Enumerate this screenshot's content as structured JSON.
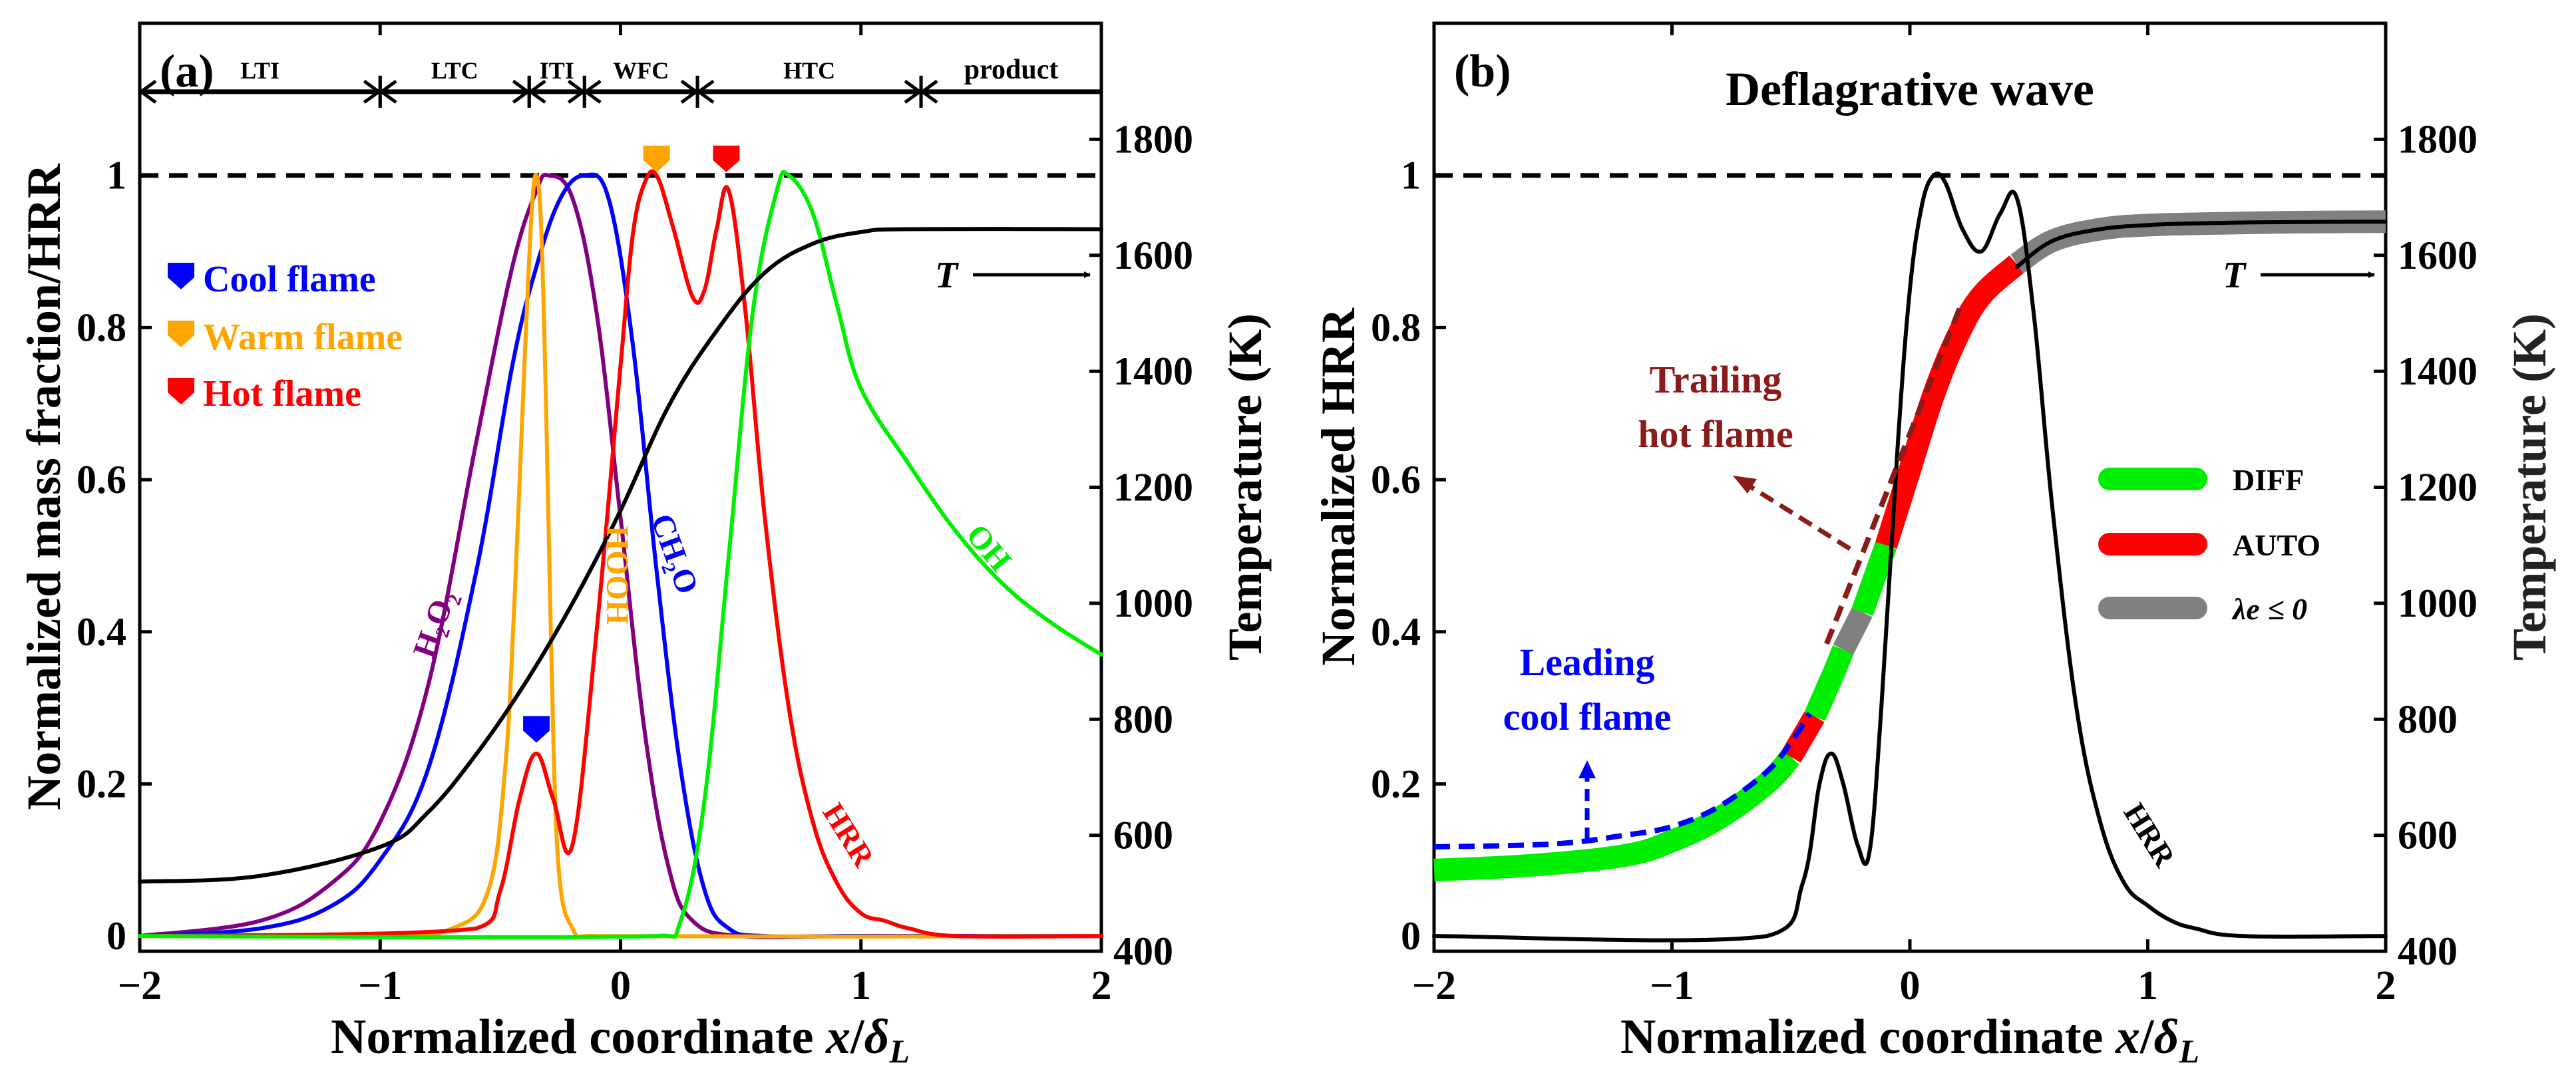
{
  "colors": {
    "black": "#000000",
    "purple": "#800080",
    "blue": "#0000ff",
    "orange": "#ffa500",
    "red": "#ff0000",
    "green": "#00ee00",
    "darkred": "#8b1a1a",
    "gray": "#808080"
  },
  "chart_data": [
    {
      "type": "line",
      "panel": "(a)",
      "xlabel": "Normalized coordinate x/δL",
      "ylabel": "Normalized mass fraction/HRR",
      "y2label": "Temperature (K)",
      "xlim": [
        -2,
        2
      ],
      "ylim": [
        -0.02,
        1.2
      ],
      "y2lim": [
        400,
        2000
      ],
      "xticks": [
        "-2",
        "-1",
        "0",
        "1",
        "2"
      ],
      "yticks": [
        "0",
        "0.2",
        "0.4",
        "0.6",
        "0.8",
        "1"
      ],
      "y2ticks": [
        "400",
        "600",
        "800",
        "1000",
        "1200",
        "1400",
        "1600",
        "1800"
      ],
      "dashed_reference": 1.0,
      "regions": [
        {
          "label": "LTI",
          "x0": -2.0,
          "x1": -1.0
        },
        {
          "label": "LTC",
          "x0": -1.0,
          "x1": -0.38
        },
        {
          "label": "ITI",
          "x0": -0.38,
          "x1": -0.15
        },
        {
          "label": "WFC",
          "x0": -0.15,
          "x1": 0.32
        },
        {
          "label": "HTC",
          "x0": 0.32,
          "x1": 1.25
        },
        {
          "label": "product",
          "x0": 1.25,
          "x1": 2.0
        }
      ],
      "legend": [
        {
          "label": "Cool flame",
          "color": "#0000ff"
        },
        {
          "label": "Warm flame",
          "color": "#ffa500"
        },
        {
          "label": "Hot flame",
          "color": "#ff0000"
        }
      ],
      "markers": [
        {
          "x": -0.35,
          "y": 0.27,
          "color": "#0000ff"
        },
        {
          "x": 0.15,
          "y": 1.02,
          "color": "#ffa500"
        },
        {
          "x": 0.44,
          "y": 1.02,
          "color": "#ff0000"
        }
      ],
      "series": [
        {
          "name": "H2O2",
          "label": "H₂O₂",
          "color": "#800080",
          "axis": "left",
          "x": [
            -2,
            -1.5,
            -1.2,
            -1.0,
            -0.8,
            -0.6,
            -0.45,
            -0.35,
            -0.3,
            -0.2,
            -0.1,
            0,
            0.1,
            0.2,
            0.3,
            0.5,
            1,
            2
          ],
          "y": [
            0.0,
            0.02,
            0.07,
            0.15,
            0.33,
            0.65,
            0.88,
            0.98,
            1.0,
            0.97,
            0.82,
            0.55,
            0.27,
            0.09,
            0.02,
            0.0,
            0.0,
            0.0
          ]
        },
        {
          "name": "CH2O",
          "label": "CH₂O",
          "color": "#0000ff",
          "axis": "left",
          "x": [
            -2,
            -1.5,
            -1.2,
            -1.0,
            -0.8,
            -0.6,
            -0.45,
            -0.35,
            -0.25,
            -0.15,
            -0.05,
            0.05,
            0.15,
            0.25,
            0.35,
            0.45,
            0.6,
            1,
            2
          ],
          "y": [
            0.0,
            0.01,
            0.04,
            0.1,
            0.22,
            0.48,
            0.75,
            0.88,
            0.97,
            1.0,
            0.97,
            0.78,
            0.48,
            0.22,
            0.06,
            0.01,
            0.0,
            0.0,
            0.0
          ]
        },
        {
          "name": "HOOH",
          "label": "HOOH",
          "color": "#ffa500",
          "axis": "left",
          "x": [
            -2,
            -1,
            -0.7,
            -0.55,
            -0.48,
            -0.44,
            -0.4,
            -0.37,
            -0.35,
            -0.33,
            -0.31,
            -0.29,
            -0.26,
            -0.2,
            -0.1,
            2
          ],
          "y": [
            0.0,
            0.0,
            0.01,
            0.06,
            0.22,
            0.45,
            0.75,
            0.95,
            1.0,
            0.93,
            0.7,
            0.4,
            0.1,
            0.01,
            0.0,
            0.0
          ]
        },
        {
          "name": "HRR",
          "label": "HRR",
          "color": "#ff0000",
          "axis": "left",
          "x": [
            -2,
            -0.6,
            -0.5,
            -0.42,
            -0.35,
            -0.28,
            -0.2,
            -0.1,
            0.0,
            0.05,
            0.1,
            0.15,
            0.22,
            0.3,
            0.35,
            0.4,
            0.45,
            0.52,
            0.6,
            0.7,
            0.8,
            0.9,
            1.0,
            1.1,
            1.2,
            1.4,
            2.0
          ],
          "y": [
            0.0,
            0.01,
            0.06,
            0.18,
            0.24,
            0.18,
            0.12,
            0.4,
            0.75,
            0.92,
            0.99,
            1.0,
            0.93,
            0.84,
            0.85,
            0.93,
            0.98,
            0.82,
            0.55,
            0.3,
            0.15,
            0.07,
            0.03,
            0.02,
            0.01,
            0.0,
            0.0
          ]
        },
        {
          "name": "OH",
          "label": "OH",
          "color": "#00ee00",
          "axis": "left",
          "x": [
            -2,
            0.15,
            0.25,
            0.35,
            0.45,
            0.55,
            0.65,
            0.7,
            0.8,
            0.9,
            1.0,
            1.2,
            1.4,
            1.6,
            1.8,
            2.0
          ],
          "y": [
            0.0,
            0.0,
            0.02,
            0.18,
            0.5,
            0.82,
            0.98,
            1.0,
            0.95,
            0.83,
            0.72,
            0.62,
            0.53,
            0.46,
            0.41,
            0.37
          ]
        },
        {
          "name": "T",
          "label": "T",
          "color": "#000000",
          "axis": "right",
          "x": [
            -2,
            -1.5,
            -1.0,
            -0.8,
            -0.6,
            -0.4,
            -0.2,
            0,
            0.2,
            0.4,
            0.6,
            0.8,
            1.0,
            1.2,
            2.0
          ],
          "y": [
            520,
            530,
            580,
            640,
            740,
            860,
            1000,
            1160,
            1340,
            1470,
            1570,
            1620,
            1640,
            1645,
            1645
          ]
        }
      ],
      "annotations": [
        {
          "text": "T",
          "x": 1.42,
          "y2": 1600
        },
        {
          "text": "H₂O₂",
          "x": -0.85,
          "y": 0.33
        },
        {
          "text": "HOOH",
          "x": -0.2,
          "y": 0.61
        },
        {
          "text": "CH₂O",
          "x": 0.28,
          "y": 0.5
        },
        {
          "text": "OH",
          "x": 1.55,
          "y": 0.5
        },
        {
          "text": "HRR",
          "x": 1.1,
          "y": 0.13
        }
      ]
    },
    {
      "type": "line",
      "panel": "(b)",
      "title": "Deflagrative wave",
      "xlabel": "Normalized coordinate x/δL",
      "ylabel": "Normalized HRR",
      "y2label": "Temperature (K)",
      "xlim": [
        -2,
        2
      ],
      "ylim": [
        -0.02,
        1.2
      ],
      "y2lim": [
        400,
        2000
      ],
      "xticks": [
        "-2",
        "-1",
        "0",
        "1",
        "2"
      ],
      "yticks": [
        "0",
        "0.2",
        "0.4",
        "0.6",
        "0.8",
        "1"
      ],
      "y2ticks": [
        "400",
        "600",
        "800",
        "1000",
        "1200",
        "1400",
        "1600",
        "1800"
      ],
      "dashed_reference": 1.0,
      "legend": [
        {
          "label": "DIFF",
          "color": "#00ee00"
        },
        {
          "label": "AUTO",
          "color": "#ff0000"
        },
        {
          "label": "λe ≤ 0",
          "color": "#808080"
        }
      ],
      "series": [
        {
          "name": "HRR",
          "label": "HRR",
          "color": "#000000",
          "axis": "left",
          "x": [
            -2,
            -0.6,
            -0.45,
            -0.38,
            -0.33,
            -0.28,
            -0.22,
            -0.17,
            -0.12,
            -0.05,
            0.0,
            0.05,
            0.1,
            0.15,
            0.22,
            0.3,
            0.38,
            0.45,
            0.52,
            0.6,
            0.7,
            0.8,
            0.9,
            1.0,
            1.1,
            1.2,
            1.4,
            2.0
          ],
          "y": [
            0.0,
            0.0,
            0.07,
            0.2,
            0.24,
            0.2,
            0.12,
            0.11,
            0.3,
            0.65,
            0.85,
            0.96,
            1.0,
            0.99,
            0.93,
            0.9,
            0.95,
            0.97,
            0.82,
            0.56,
            0.3,
            0.15,
            0.07,
            0.04,
            0.02,
            0.01,
            0.0,
            0.0
          ]
        },
        {
          "name": "T_thin",
          "label": "",
          "color": "#000000",
          "axis": "right",
          "x": [
            0.45,
            0.6,
            0.8,
            1.0,
            1.2,
            1.5,
            2.0
          ],
          "y": [
            1580,
            1625,
            1645,
            1652,
            1655,
            1657,
            1658
          ]
        },
        {
          "name": "Trailing hot flame guide",
          "label": "Trailing hot flame",
          "color": "#8b1a1a",
          "axis": "right",
          "style": "dashed",
          "x": [
            -0.35,
            0.22
          ],
          "y": [
            930,
            1520
          ]
        },
        {
          "name": "Leading cool flame guide",
          "label": "Leading cool flame",
          "color": "#0000ff",
          "axis": "right",
          "style": "dashed",
          "x": [
            -2,
            -1.5,
            -1.2,
            -1.0,
            -0.8,
            -0.6,
            -0.5,
            -0.42
          ],
          "y": [
            580,
            585,
            600,
            615,
            650,
            710,
            760,
            810
          ]
        }
      ],
      "temperature_segments": [
        {
          "mode": "DIFF",
          "color": "#00ee00",
          "x": [
            -2,
            -1.6,
            -1.2,
            -1.0,
            -0.8,
            -0.6,
            -0.5
          ],
          "y": [
            540,
            548,
            565,
            590,
            630,
            690,
            735
          ]
        },
        {
          "mode": "AUTO",
          "color": "#ff0000",
          "x": [
            -0.5,
            -0.4
          ],
          "y": [
            735,
            805
          ]
        },
        {
          "mode": "DIFF",
          "color": "#00ee00",
          "x": [
            -0.4,
            -0.32,
            -0.28
          ],
          "y": [
            805,
            880,
            920
          ]
        },
        {
          "mode": "λe ≤ 0",
          "color": "#808080",
          "x": [
            -0.28,
            -0.2
          ],
          "y": [
            920,
            985
          ]
        },
        {
          "mode": "DIFF",
          "color": "#00ee00",
          "x": [
            -0.2,
            -0.1
          ],
          "y": [
            985,
            1100
          ]
        },
        {
          "mode": "AUTO",
          "color": "#ff0000",
          "x": [
            -0.1,
            0.0,
            0.1,
            0.2,
            0.3,
            0.45
          ],
          "y": [
            1100,
            1230,
            1360,
            1460,
            1530,
            1585
          ]
        },
        {
          "mode": "λe ≤ 0",
          "color": "#808080",
          "x": [
            0.45,
            0.6,
            0.8,
            1.0,
            1.3,
            1.6,
            2.0
          ],
          "y": [
            1585,
            1625,
            1645,
            1652,
            1655,
            1657,
            1658
          ]
        }
      ],
      "annotations": [
        {
          "text": "Trailing",
          "x": -0.3,
          "y": 0.71
        },
        {
          "text": "hot flame",
          "x": -0.3,
          "y": 0.64
        },
        {
          "text": "Leading",
          "x": -1.15,
          "y": 0.36
        },
        {
          "text": "cool flame",
          "x": -1.15,
          "y": 0.29
        },
        {
          "text": "T",
          "x": 1.42,
          "y2": 1600
        },
        {
          "text": "HRR",
          "x": 1.1,
          "y": 0.13
        }
      ]
    }
  ]
}
